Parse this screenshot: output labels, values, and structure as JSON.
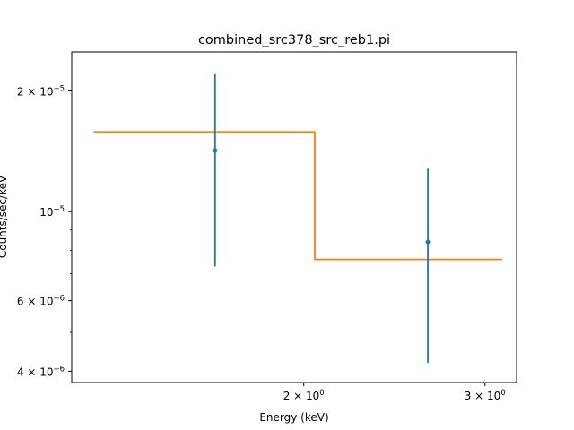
{
  "chart_data": {
    "type": "scatter",
    "title": "combined_src378_src_reb1.pi",
    "xlabel": "Energy (keV)",
    "ylabel": "Counts/sec/keV",
    "xscale": "log",
    "yscale": "log",
    "xlim": [
      1.19,
      3.22
    ],
    "ylim": [
      3.75e-06,
      2.5e-05
    ],
    "xticks": [
      {
        "value": 2.0,
        "label": "2 × 10",
        "exp": "0"
      },
      {
        "value": 3.0,
        "label": "3 × 10",
        "exp": "0"
      }
    ],
    "yticks": [
      {
        "value": 4e-06,
        "label": "4 × 10",
        "exp": "−6"
      },
      {
        "value": 6e-06,
        "label": "6 × 10",
        "exp": "−6"
      },
      {
        "value": 1e-05,
        "label": "10",
        "exp": "−5"
      },
      {
        "value": 2e-05,
        "label": "2 × 10",
        "exp": "−5"
      }
    ],
    "series": [
      {
        "kind": "errorbar",
        "color": "#1f77b4",
        "points": [
          {
            "x": 1.64,
            "y": 1.42e-05,
            "ylo": 7.3e-06,
            "yhi": 2.2e-05
          },
          {
            "x": 2.64,
            "y": 8.4e-06,
            "ylo": 4.2e-06,
            "yhi": 1.28e-05
          }
        ]
      },
      {
        "kind": "step",
        "color": "#ff7f0e",
        "points": [
          {
            "x0": 1.25,
            "x1": 2.05,
            "y": 1.58e-05
          },
          {
            "x0": 2.05,
            "x1": 3.12,
            "y": 7.6e-06
          }
        ]
      }
    ]
  }
}
